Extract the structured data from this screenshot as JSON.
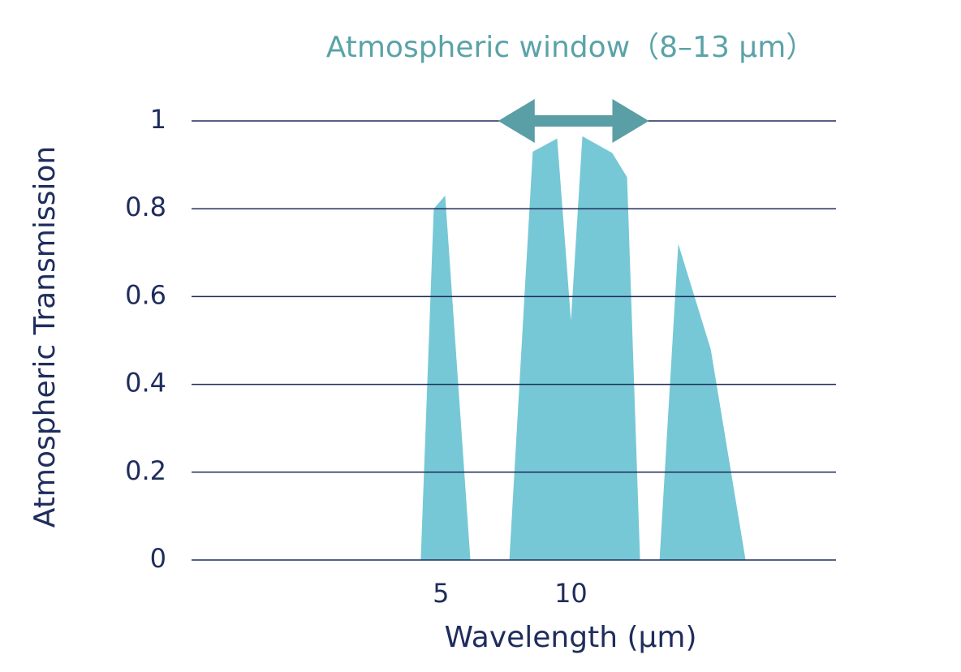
{
  "chart_data": {
    "type": "area",
    "title": "Atmospheric window（8–13 µm）",
    "x_label": "Wavelength (µm)",
    "y_label": "Atmospheric Transmission",
    "x": [
      4.22,
      4.72,
      5.16,
      6.13,
      null,
      7.63,
      8.53,
      9.47,
      10.0,
      10.44,
      11.59,
      12.16,
      12.66,
      null,
      13.41,
      14.13,
      15.38,
      16.72
    ],
    "values": [
      0,
      0.8,
      0.83,
      0,
      null,
      0,
      0.93,
      0.96,
      0.545,
      0.965,
      0.927,
      0.872,
      0,
      null,
      0,
      0.72,
      0.48,
      0
    ],
    "color": "#76c8d6",
    "xlim": [
      -4.6,
      20.2
    ],
    "xticks": [
      5,
      10
    ],
    "ylim": [
      0,
      1
    ],
    "yticks": [
      0,
      0.2,
      0.4,
      0.6,
      0.8,
      1
    ],
    "grid": true,
    "annotation": {
      "x": [
        7.2,
        13.0
      ],
      "y": 1,
      "color": "#5a9ea6"
    }
  }
}
